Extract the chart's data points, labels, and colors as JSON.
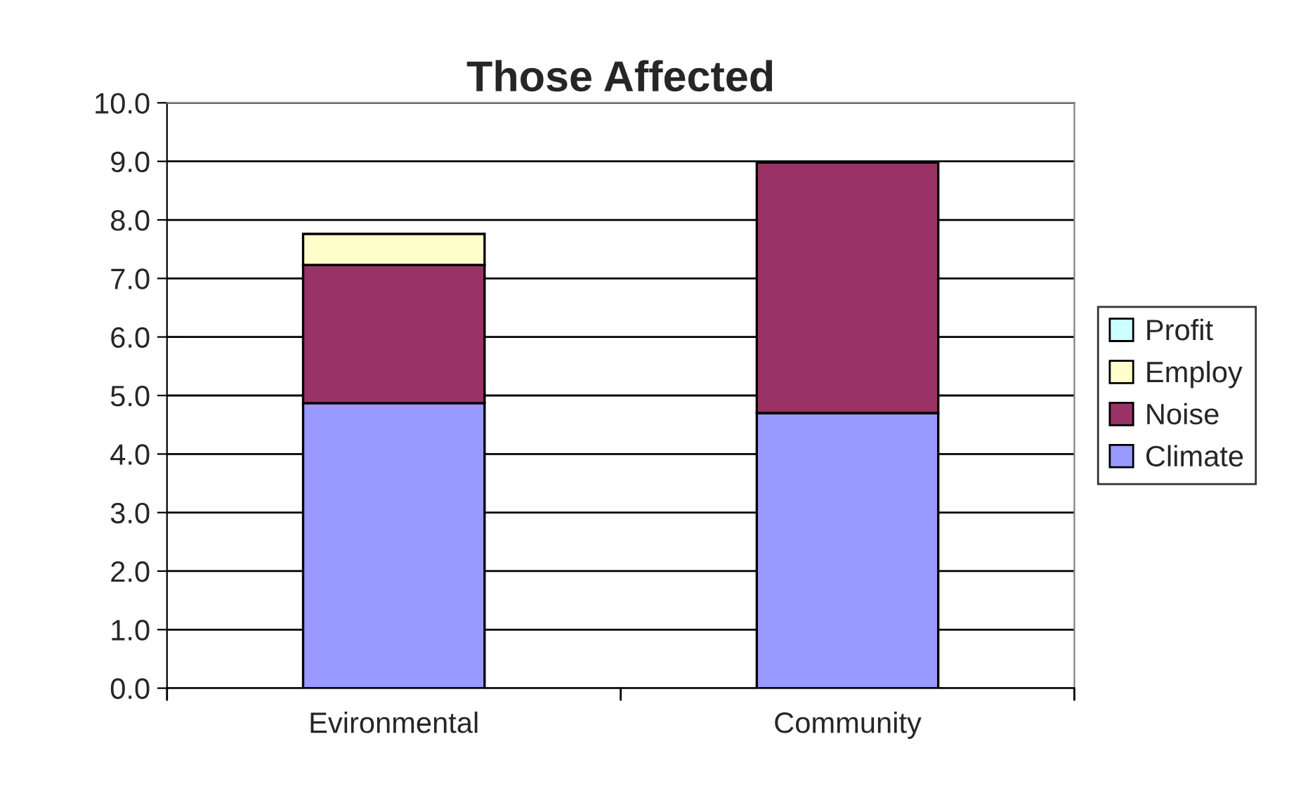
{
  "chart_data": {
    "type": "bar",
    "title": "Those Affected",
    "categories": [
      "Evironmental",
      "Community"
    ],
    "stacked": true,
    "series": [
      {
        "name": "Climate",
        "color": "#9999ff",
        "values": [
          4.87,
          4.7
        ]
      },
      {
        "name": "Noise",
        "color": "#993366",
        "values": [
          2.36,
          4.28
        ]
      },
      {
        "name": "Employ",
        "color": "#ffffcc",
        "values": [
          0.53,
          null
        ]
      },
      {
        "name": "Profit",
        "color": "#ccffff",
        "values": [
          null,
          null
        ]
      }
    ],
    "ylim": [
      0,
      10
    ],
    "yticks": [
      {
        "value": 0,
        "label": "0.0"
      },
      {
        "value": 1,
        "label": "1.0"
      },
      {
        "value": 2,
        "label": "2.0"
      },
      {
        "value": 3,
        "label": "3.0"
      },
      {
        "value": 4,
        "label": "4.0"
      },
      {
        "value": 5,
        "label": "5.0"
      },
      {
        "value": 6,
        "label": "6.0"
      },
      {
        "value": 7,
        "label": "7.0"
      },
      {
        "value": 8,
        "label": "8.0"
      },
      {
        "value": 9,
        "label": "9.0"
      },
      {
        "value": 10,
        "label": "10.0"
      }
    ],
    "grid": "y",
    "legend": "right"
  }
}
